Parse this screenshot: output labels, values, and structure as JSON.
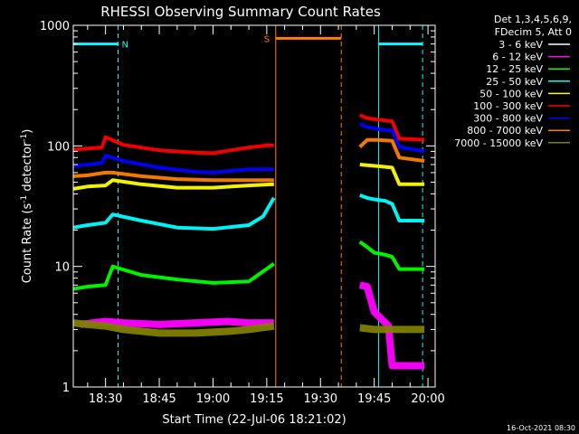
{
  "chart_data": {
    "type": "line",
    "title": "RHESSI Observing Summary Count Rates",
    "xlabel": "Start Time (22-Jul-06 18:21:02)",
    "ylabel": "Count Rate (s⁻¹ detector⁻¹)",
    "ylabel_parts": [
      "Count Rate (s",
      "-1",
      " detector",
      "-1",
      ")"
    ],
    "yscale": "log",
    "ylim": [
      1,
      1000
    ],
    "xlim_minutes": [
      1101,
      1202
    ],
    "x_ticks": [
      {
        "label": "18:30",
        "minute": 1110
      },
      {
        "label": "18:45",
        "minute": 1125
      },
      {
        "label": "19:00",
        "minute": 1140
      },
      {
        "label": "19:15",
        "minute": 1155
      },
      {
        "label": "19:30",
        "minute": 1170
      },
      {
        "label": "19:45",
        "minute": 1185
      },
      {
        "label": "20:00",
        "minute": 1200
      }
    ],
    "y_ticks": [
      {
        "label": "1",
        "value": 1
      },
      {
        "label": "10",
        "value": 10
      },
      {
        "label": "100",
        "value": 100
      },
      {
        "label": "1000",
        "value": 1000
      }
    ],
    "legend_header": [
      "Det 1,3,4,5,6,9,",
      "FDecim 5, Att 0"
    ],
    "legend_position": "top-right",
    "timestamp": "16-Oct-2021 08:30",
    "series": [
      {
        "name": "3 - 6 keV",
        "color": "#ffffff",
        "x": [],
        "y": []
      },
      {
        "name": "6 - 12 keV",
        "color": "#ff00ff",
        "x": [
          1103,
          1110,
          1115,
          1125,
          1135,
          1144,
          1150,
          1157,
          1181,
          1183,
          1185,
          1189,
          1190,
          1193,
          1199
        ],
        "y": [
          3.3,
          3.5,
          3.4,
          3.3,
          3.4,
          3.5,
          3.4,
          3.4,
          7,
          6.8,
          4.2,
          3.2,
          1.5,
          1.5,
          1.5
        ]
      },
      {
        "name": "12 - 25 keV",
        "color": "#00ff00",
        "x": [
          1101,
          1105,
          1110,
          1112,
          1120,
          1130,
          1140,
          1150,
          1157,
          1181,
          1183,
          1185,
          1188,
          1190,
          1192,
          1199
        ],
        "y": [
          6.5,
          6.8,
          7,
          10,
          8.5,
          7.8,
          7.3,
          7.5,
          10.5,
          16,
          14.5,
          13,
          12.5,
          12,
          9.5,
          9.5
        ]
      },
      {
        "name": "25 - 50 keV",
        "color": "#00ffff",
        "x": [
          1101,
          1105,
          1110,
          1112,
          1120,
          1130,
          1140,
          1150,
          1154,
          1157,
          1181,
          1183,
          1185,
          1188,
          1190,
          1192,
          1199
        ],
        "y": [
          21,
          22,
          23,
          27,
          24,
          21,
          20.5,
          22,
          26,
          37,
          39,
          37,
          36,
          35,
          33,
          24,
          24
        ]
      },
      {
        "name": "50 - 100 keV",
        "color": "#ffff00",
        "x": [
          1101,
          1105,
          1110,
          1112,
          1120,
          1130,
          1140,
          1150,
          1157,
          1181,
          1183,
          1186,
          1190,
          1192,
          1199
        ],
        "y": [
          44,
          46,
          47,
          52,
          48,
          45,
          45,
          47,
          48,
          70,
          69,
          68,
          66,
          48,
          48
        ]
      },
      {
        "name": "100 - 300 keV",
        "color": "#ff0000",
        "x": [
          1101,
          1105,
          1109,
          1110,
          1115,
          1125,
          1135,
          1140,
          1145,
          1150,
          1155,
          1157,
          1181,
          1183,
          1186,
          1190,
          1192,
          1199
        ],
        "y": [
          93,
          95,
          97,
          118,
          102,
          92,
          88,
          87,
          92,
          97,
          101,
          101,
          180,
          170,
          165,
          160,
          115,
          112
        ]
      },
      {
        "name": "300 - 800 keV",
        "color": "#0000ff",
        "x": [
          1101,
          1105,
          1109,
          1110,
          1115,
          1125,
          1135,
          1140,
          1145,
          1150,
          1155,
          1157,
          1181,
          1183,
          1186,
          1190,
          1192,
          1199
        ],
        "y": [
          68,
          70,
          72,
          83,
          75,
          66,
          61,
          60,
          62,
          64,
          64,
          64,
          152,
          143,
          138,
          134,
          98,
          90
        ]
      },
      {
        "name": "800 - 7000 keV",
        "color": "#ff8000",
        "x": [
          1101,
          1105,
          1110,
          1112,
          1120,
          1130,
          1140,
          1150,
          1157,
          1181,
          1183,
          1186,
          1190,
          1192,
          1199
        ],
        "y": [
          56,
          57,
          60,
          60,
          56,
          53,
          52,
          52,
          52,
          98,
          112,
          112,
          110,
          80,
          75
        ]
      },
      {
        "name": "7000 - 15000 keV",
        "color": "#808000",
        "x": [
          1101,
          1105,
          1110,
          1115,
          1125,
          1135,
          1145,
          1150,
          1157,
          1181,
          1185,
          1190,
          1199
        ],
        "y": [
          3.4,
          3.3,
          3.2,
          3.0,
          2.8,
          2.8,
          2.9,
          3.0,
          3.2,
          3.1,
          3.0,
          3.0,
          3.0
        ]
      }
    ],
    "flag_bars": [
      {
        "label": "N",
        "color": "#00ffff",
        "y": 700,
        "segments": [
          [
            1101,
            1113.5
          ],
          [
            1186.2,
            1198.5
          ]
        ]
      },
      {
        "label": "S",
        "color": "#ff8000",
        "y": 780,
        "segments": [
          [
            1157.5,
            1175.8
          ]
        ]
      }
    ],
    "vlines": [
      {
        "minute": 1101,
        "color": "#00ffff",
        "style": "solid"
      },
      {
        "minute": 1113.5,
        "color": "#00ffff",
        "style": "dashed"
      },
      {
        "minute": 1157.5,
        "color": "#ff8000",
        "style": "solid"
      },
      {
        "minute": 1175.8,
        "color": "#ff8000",
        "style": "dashed"
      },
      {
        "minute": 1186.2,
        "color": "#00ffff",
        "style": "solid"
      },
      {
        "minute": 1198.5,
        "color": "#00ffff",
        "style": "dashed"
      }
    ]
  }
}
